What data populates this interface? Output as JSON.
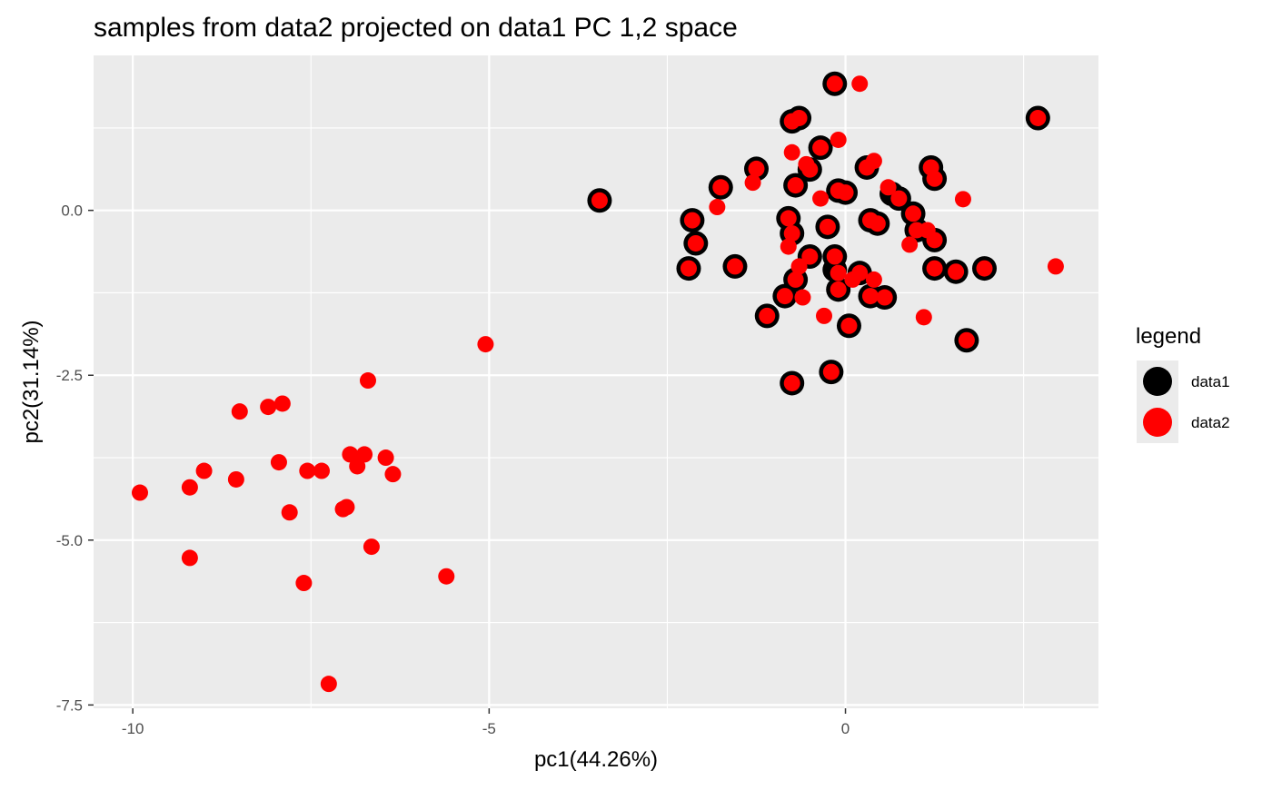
{
  "chart_data": {
    "type": "scatter",
    "title": "samples from data2 projected on data1 PC 1,2 space",
    "xlabel": "pc1(44.26%)",
    "ylabel": "pc2(31.14%)",
    "xlim": [
      -10.55,
      3.55
    ],
    "ylim": [
      -7.55,
      2.35
    ],
    "x_ticks": [
      -10,
      -5,
      0
    ],
    "x_tick_labels": [
      "-10",
      "-5",
      "0"
    ],
    "y_ticks": [
      0,
      -2.5,
      -5,
      -7.5
    ],
    "y_tick_labels": [
      "0.0",
      "-2.5",
      "-5.0",
      "-7.5"
    ],
    "grid": true,
    "legend": {
      "title": "legend",
      "position": "right",
      "entries": [
        {
          "label": "data1",
          "color": "#000000"
        },
        {
          "label": "data2",
          "color": "#ff0000"
        }
      ]
    },
    "series": [
      {
        "name": "data1",
        "color": "#000000",
        "points": [
          [
            -0.15,
            1.92
          ],
          [
            2.7,
            1.4
          ],
          [
            -0.75,
            1.35
          ],
          [
            -0.65,
            1.4
          ],
          [
            -1.25,
            0.63
          ],
          [
            -1.75,
            0.35
          ],
          [
            -0.7,
            0.38
          ],
          [
            -0.35,
            0.95
          ],
          [
            -0.5,
            0.62
          ],
          [
            -0.1,
            0.3
          ],
          [
            0.0,
            0.27
          ],
          [
            0.3,
            0.65
          ],
          [
            0.65,
            0.25
          ],
          [
            0.75,
            0.18
          ],
          [
            1.2,
            0.65
          ],
          [
            1.25,
            0.48
          ],
          [
            -3.45,
            0.15
          ],
          [
            -2.15,
            -0.15
          ],
          [
            -2.1,
            -0.5
          ],
          [
            -0.8,
            -0.12
          ],
          [
            -0.75,
            -0.35
          ],
          [
            -0.25,
            -0.25
          ],
          [
            0.35,
            -0.15
          ],
          [
            0.45,
            -0.2
          ],
          [
            0.95,
            -0.05
          ],
          [
            1.0,
            -0.3
          ],
          [
            1.25,
            -0.45
          ],
          [
            -2.2,
            -0.88
          ],
          [
            -1.55,
            -0.85
          ],
          [
            -0.5,
            -0.7
          ],
          [
            -0.15,
            -0.7
          ],
          [
            -0.15,
            -0.9
          ],
          [
            0.2,
            -0.95
          ],
          [
            -0.85,
            -1.3
          ],
          [
            -0.7,
            -1.05
          ],
          [
            1.25,
            -0.88
          ],
          [
            1.55,
            -0.93
          ],
          [
            1.95,
            -0.88
          ],
          [
            -1.1,
            -1.6
          ],
          [
            -0.1,
            -1.2
          ],
          [
            0.35,
            -1.3
          ],
          [
            0.55,
            -1.32
          ],
          [
            0.05,
            -1.75
          ],
          [
            1.7,
            -1.97
          ],
          [
            -0.75,
            -2.62
          ],
          [
            -0.2,
            -2.45
          ]
        ]
      },
      {
        "name": "data2",
        "color": "#ff0000",
        "points": [
          [
            -0.15,
            1.92
          ],
          [
            0.2,
            1.92
          ],
          [
            2.7,
            1.4
          ],
          [
            -0.75,
            1.35
          ],
          [
            -0.65,
            1.4
          ],
          [
            -0.1,
            1.07
          ],
          [
            -0.75,
            0.88
          ],
          [
            -0.35,
            0.95
          ],
          [
            -1.25,
            0.63
          ],
          [
            -1.3,
            0.42
          ],
          [
            -1.75,
            0.35
          ],
          [
            -0.7,
            0.38
          ],
          [
            -0.5,
            0.62
          ],
          [
            -0.55,
            0.7
          ],
          [
            0.3,
            0.65
          ],
          [
            0.4,
            0.75
          ],
          [
            -0.1,
            0.3
          ],
          [
            0.0,
            0.27
          ],
          [
            -0.35,
            0.18
          ],
          [
            0.6,
            0.35
          ],
          [
            0.75,
            0.18
          ],
          [
            1.2,
            0.65
          ],
          [
            1.25,
            0.48
          ],
          [
            1.65,
            0.17
          ],
          [
            -3.45,
            0.15
          ],
          [
            -1.8,
            0.05
          ],
          [
            -2.15,
            -0.15
          ],
          [
            -2.1,
            -0.5
          ],
          [
            -0.8,
            -0.12
          ],
          [
            -0.75,
            -0.35
          ],
          [
            -0.8,
            -0.55
          ],
          [
            -0.25,
            -0.25
          ],
          [
            0.35,
            -0.15
          ],
          [
            0.45,
            -0.2
          ],
          [
            0.95,
            -0.05
          ],
          [
            1.0,
            -0.3
          ],
          [
            0.9,
            -0.52
          ],
          [
            1.15,
            -0.3
          ],
          [
            1.25,
            -0.45
          ],
          [
            -2.2,
            -0.88
          ],
          [
            -1.55,
            -0.85
          ],
          [
            -0.5,
            -0.7
          ],
          [
            -0.65,
            -0.85
          ],
          [
            -0.15,
            -0.7
          ],
          [
            -0.1,
            -0.95
          ],
          [
            0.1,
            -1.05
          ],
          [
            0.2,
            -0.95
          ],
          [
            0.4,
            -1.05
          ],
          [
            1.25,
            -0.88
          ],
          [
            1.55,
            -0.93
          ],
          [
            1.95,
            -0.88
          ],
          [
            2.95,
            -0.85
          ],
          [
            -0.85,
            -1.3
          ],
          [
            -0.7,
            -1.05
          ],
          [
            -0.6,
            -1.32
          ],
          [
            -1.1,
            -1.6
          ],
          [
            -0.3,
            -1.6
          ],
          [
            -0.1,
            -1.2
          ],
          [
            0.35,
            -1.3
          ],
          [
            0.55,
            -1.32
          ],
          [
            1.1,
            -1.62
          ],
          [
            0.05,
            -1.75
          ],
          [
            1.7,
            -1.97
          ],
          [
            -0.75,
            -2.62
          ],
          [
            -0.2,
            -2.45
          ],
          [
            -5.05,
            -2.03
          ],
          [
            -6.7,
            -2.58
          ],
          [
            -8.5,
            -3.05
          ],
          [
            -8.1,
            -2.98
          ],
          [
            -7.9,
            -2.93
          ],
          [
            -9.0,
            -3.95
          ],
          [
            -8.55,
            -4.08
          ],
          [
            -7.95,
            -3.82
          ],
          [
            -7.55,
            -3.95
          ],
          [
            -7.35,
            -3.95
          ],
          [
            -6.95,
            -3.7
          ],
          [
            -6.75,
            -3.7
          ],
          [
            -6.85,
            -3.88
          ],
          [
            -6.45,
            -3.75
          ],
          [
            -6.35,
            -4.0
          ],
          [
            -9.9,
            -4.28
          ],
          [
            -9.2,
            -4.2
          ],
          [
            -7.8,
            -4.58
          ],
          [
            -7.05,
            -4.53
          ],
          [
            -7.0,
            -4.5
          ],
          [
            -6.65,
            -5.1
          ],
          [
            -9.2,
            -5.27
          ],
          [
            -7.6,
            -5.65
          ],
          [
            -5.6,
            -5.55
          ],
          [
            -7.25,
            -7.18
          ]
        ]
      }
    ]
  }
}
